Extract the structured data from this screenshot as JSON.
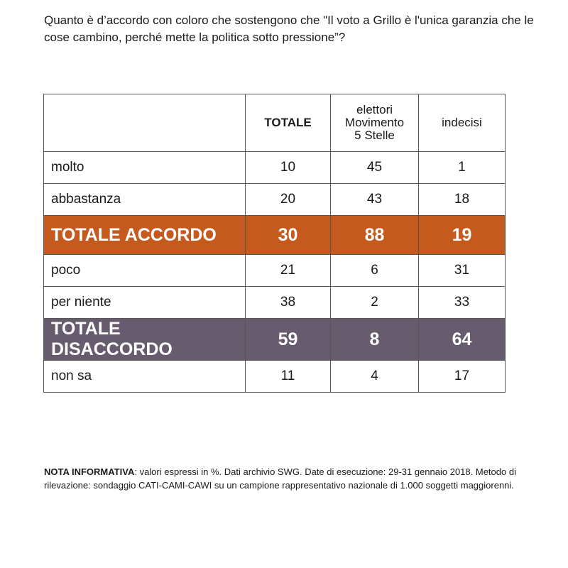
{
  "question": "Quanto è d’accordo con coloro che sostengono che \"Il voto a Grillo è l'unica garanzia che le cose cambino, perché mette la politica sotto pressione”?",
  "colors": {
    "accordo": "#c55a1e",
    "disaccordo": "#675b6e",
    "border": "#555555"
  },
  "chart_data": {
    "type": "table",
    "columns": [
      "TOTALE",
      "elettori Movimento 5 Stelle",
      "indecisi"
    ],
    "rows": [
      {
        "label": "molto",
        "values": [
          "10",
          "45",
          "1"
        ]
      },
      {
        "label": "abbastanza",
        "values": [
          "20",
          "43",
          "18"
        ]
      },
      {
        "label": "TOTALE ACCORDO",
        "values": [
          "30",
          "88",
          "19"
        ]
      },
      {
        "label": "poco",
        "values": [
          "21",
          "6",
          "31"
        ]
      },
      {
        "label": "per niente",
        "values": [
          "38",
          "2",
          "33"
        ]
      },
      {
        "label": "TOTALE DISACCORDO",
        "values": [
          "59",
          "8",
          "64"
        ]
      },
      {
        "label": "non sa",
        "values": [
          "11",
          "4",
          "17"
        ]
      }
    ]
  },
  "note": {
    "title": "NOTA INFORMATIVA",
    "text": ": valori espressi in %. Dati archivio SWG. Date di esecuzione: 29-31 gennaio 2018. Metodo di rilevazione: sondaggio CATI-CAMI-CAWI su un campione rappresentativo nazionale di 1.000 soggetti maggiorenni."
  }
}
